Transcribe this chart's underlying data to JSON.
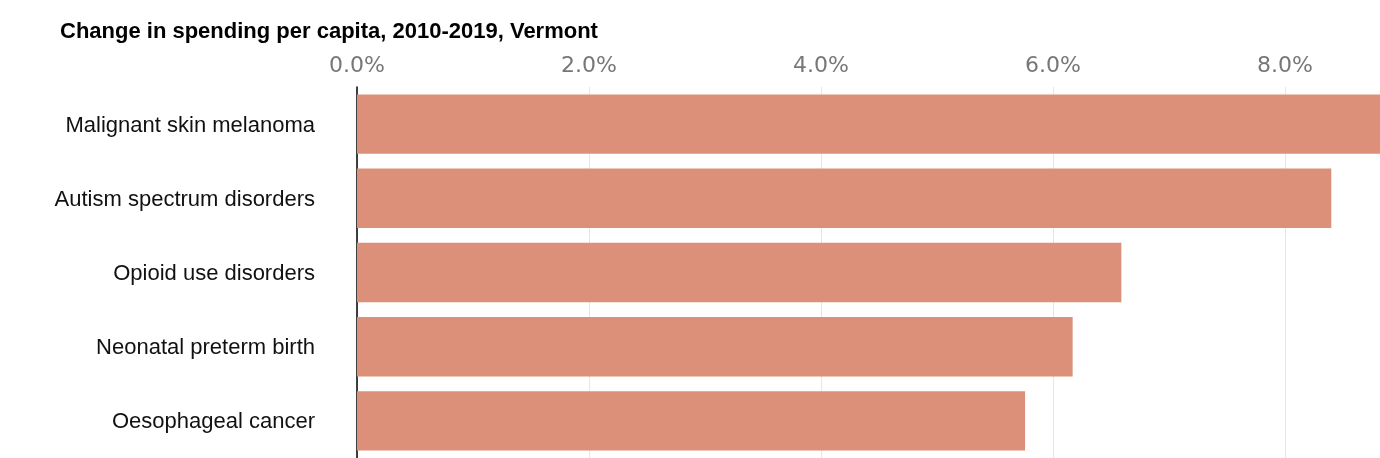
{
  "chart_data": {
    "type": "bar",
    "orientation": "horizontal",
    "title": "Change in spending per capita, 2010-2019, Vermont",
    "categories": [
      "Malignant skin melanoma",
      "Autism spectrum disorders",
      "Opioid use disorders",
      "Neonatal preterm birth",
      "Oesophageal cancer"
    ],
    "values": [
      8.82,
      8.4,
      6.59,
      6.17,
      5.76
    ],
    "color": "#dd9079",
    "xlim": [
      0,
      8.82
    ],
    "xticks": [
      {
        "value": 0,
        "label": "0.0%"
      },
      {
        "value": 2,
        "label": "2.0%"
      },
      {
        "value": 4,
        "label": "4.0%"
      },
      {
        "value": 6,
        "label": "6.0%"
      },
      {
        "value": 8,
        "label": "8.0%"
      }
    ],
    "grid": "x"
  }
}
